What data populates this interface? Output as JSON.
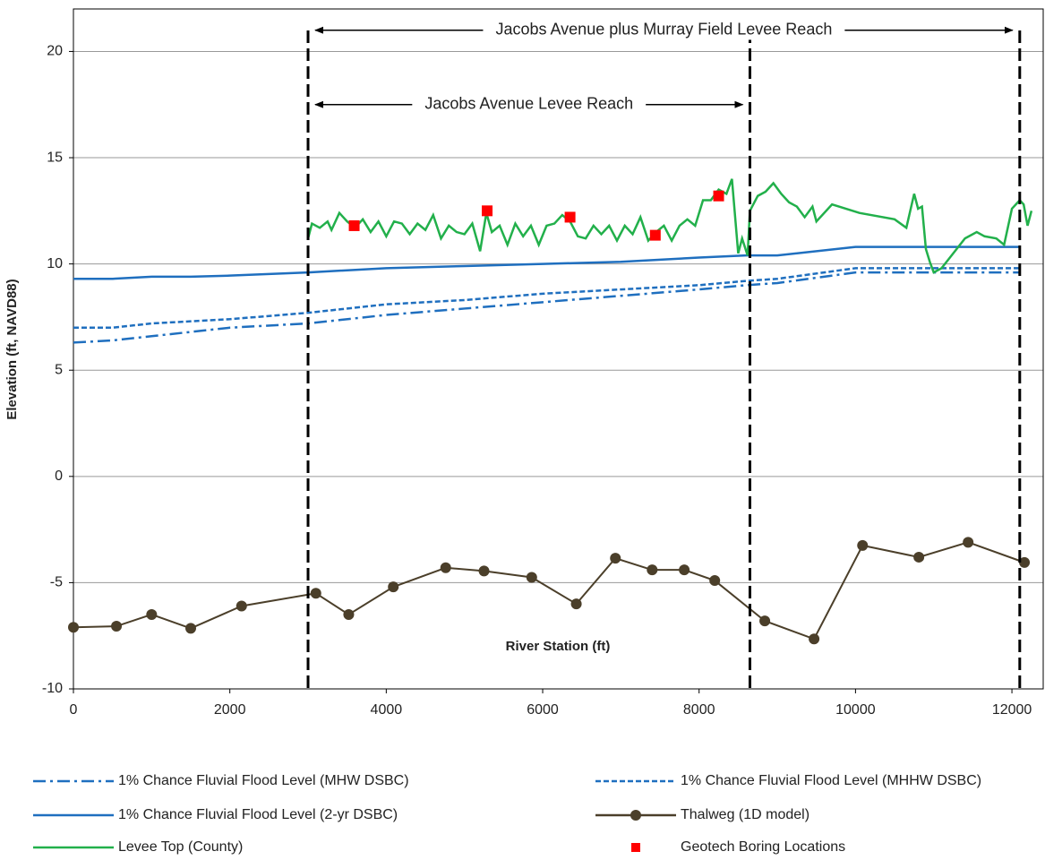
{
  "chart_data": {
    "type": "line",
    "x_label": "River Station (ft)",
    "y_label": "Elevation (ft, NAVD88)",
    "xlim": [
      0,
      12400
    ],
    "ylim": [
      -10,
      22
    ],
    "xticks": [
      0,
      2000,
      4000,
      6000,
      8000,
      10000,
      12000
    ],
    "yticks": [
      -10,
      -5,
      0,
      5,
      10,
      15,
      20
    ],
    "grid": true,
    "vlines": [
      3000,
      8650,
      12100
    ],
    "annotations": [
      {
        "text": "Jacobs Avenue plus Murray Field Levee Reach",
        "from": 3000,
        "to": 12100,
        "y": 21
      },
      {
        "text": "Jacobs Avenue Levee Reach",
        "from": 3000,
        "to": 8650,
        "y": 17.5
      }
    ],
    "series": [
      {
        "name": "1% Chance Fluvial Flood Level (MHW  DSBC)",
        "style": "dashdot",
        "color": "#1f6fbf",
        "x": [
          0,
          500,
          1000,
          1500,
          2000,
          3000,
          4000,
          5000,
          6000,
          7000,
          8000,
          8600,
          9000,
          10000,
          11000,
          12100
        ],
        "values": [
          6.3,
          6.4,
          6.6,
          6.8,
          7.0,
          7.2,
          7.6,
          7.9,
          8.2,
          8.5,
          8.8,
          9.0,
          9.1,
          9.6,
          9.6,
          9.6
        ]
      },
      {
        "name": "1% Chance Fluvial Flood Level (MHHW  DSBC)",
        "style": "dash",
        "color": "#1f6fbf",
        "x": [
          0,
          500,
          1000,
          1500,
          2000,
          3000,
          4000,
          5000,
          6000,
          7000,
          8000,
          8600,
          9000,
          10000,
          11000,
          12100
        ],
        "values": [
          7.0,
          7.0,
          7.2,
          7.3,
          7.4,
          7.7,
          8.1,
          8.3,
          8.6,
          8.8,
          9.0,
          9.2,
          9.3,
          9.8,
          9.8,
          9.8
        ]
      },
      {
        "name": "1% Chance Fluvial Flood Level (2-yr DSBC)",
        "style": "solid",
        "color": "#1f6fbf",
        "x": [
          0,
          500,
          1000,
          1500,
          2000,
          3000,
          4000,
          5000,
          6000,
          7000,
          8000,
          8600,
          9000,
          10000,
          11000,
          12100
        ],
        "values": [
          9.3,
          9.3,
          9.4,
          9.4,
          9.45,
          9.6,
          9.8,
          9.9,
          10.0,
          10.1,
          10.3,
          10.4,
          10.4,
          10.8,
          10.8,
          10.8
        ]
      },
      {
        "name": "Thalweg (1D model)",
        "style": "line-marker",
        "color": "#4b3f2a",
        "x": [
          0,
          550,
          1000,
          1500,
          2150,
          3100,
          3520,
          4090,
          4760,
          5250,
          5860,
          6430,
          6930,
          7400,
          7810,
          8200,
          8840,
          9470,
          10090,
          10810,
          11440,
          12160
        ],
        "values": [
          -7.1,
          -7.05,
          -6.5,
          -7.15,
          -6.1,
          -5.5,
          -6.5,
          -5.2,
          -4.3,
          -4.45,
          -4.75,
          -6.0,
          -3.85,
          -4.4,
          -4.4,
          -4.9,
          -6.8,
          -7.65,
          -3.25,
          -3.8,
          -3.1,
          -4.05
        ]
      },
      {
        "name": "Levee Top (County)",
        "style": "solid",
        "color": "#22b04b",
        "x": [
          3000,
          3050,
          3150,
          3250,
          3300,
          3400,
          3500,
          3600,
          3700,
          3800,
          3900,
          4000,
          4100,
          4200,
          4300,
          4400,
          4500,
          4600,
          4700,
          4800,
          4900,
          5000,
          5100,
          5200,
          5280,
          5350,
          5450,
          5550,
          5650,
          5750,
          5850,
          5950,
          6050,
          6150,
          6250,
          6350,
          6450,
          6550,
          6650,
          6750,
          6850,
          6950,
          7050,
          7150,
          7250,
          7350,
          7450,
          7550,
          7650,
          7750,
          7850,
          7950,
          8050,
          8150,
          8250,
          8350,
          8420,
          8500,
          8550,
          8620,
          8650,
          8750,
          8850,
          8950,
          9050,
          9150,
          9250,
          9350,
          9450,
          9500,
          9700,
          10050,
          10500,
          10650,
          10750,
          10800,
          10850,
          10900,
          10950,
          11000,
          11100,
          11250,
          11400,
          11550,
          11650,
          11800,
          11900,
          12000,
          12100,
          12150,
          12200,
          12250
        ],
        "values": [
          11.2,
          11.9,
          11.7,
          12.0,
          11.6,
          12.4,
          12.0,
          11.7,
          12.1,
          11.5,
          12.0,
          11.3,
          12.0,
          11.9,
          11.4,
          11.9,
          11.6,
          12.3,
          11.2,
          11.8,
          11.5,
          11.4,
          11.9,
          10.6,
          12.4,
          11.5,
          11.8,
          10.9,
          11.9,
          11.3,
          11.8,
          10.9,
          11.8,
          11.9,
          12.3,
          12.0,
          11.3,
          11.2,
          11.8,
          11.4,
          11.8,
          11.1,
          11.8,
          11.4,
          12.2,
          11.1,
          11.5,
          11.8,
          11.1,
          11.8,
          12.1,
          11.8,
          13.0,
          13.0,
          13.5,
          13.3,
          14.0,
          10.5,
          11.2,
          10.4,
          12.5,
          13.2,
          13.4,
          13.8,
          13.3,
          12.9,
          12.7,
          12.2,
          12.7,
          12.0,
          12.8,
          12.4,
          12.1,
          11.7,
          13.3,
          12.6,
          12.7,
          10.7,
          10.1,
          9.6,
          9.8,
          10.5,
          11.2,
          11.5,
          11.3,
          11.2,
          10.9,
          12.6,
          13.0,
          12.8,
          11.8,
          12.5
        ]
      },
      {
        "name": "Geotech Boring Locations",
        "style": "marker",
        "color": "#ff0000",
        "x": [
          3590,
          5290,
          6350,
          7440,
          8250
        ],
        "values": [
          11.8,
          12.5,
          12.2,
          11.35,
          13.2
        ]
      }
    ]
  }
}
